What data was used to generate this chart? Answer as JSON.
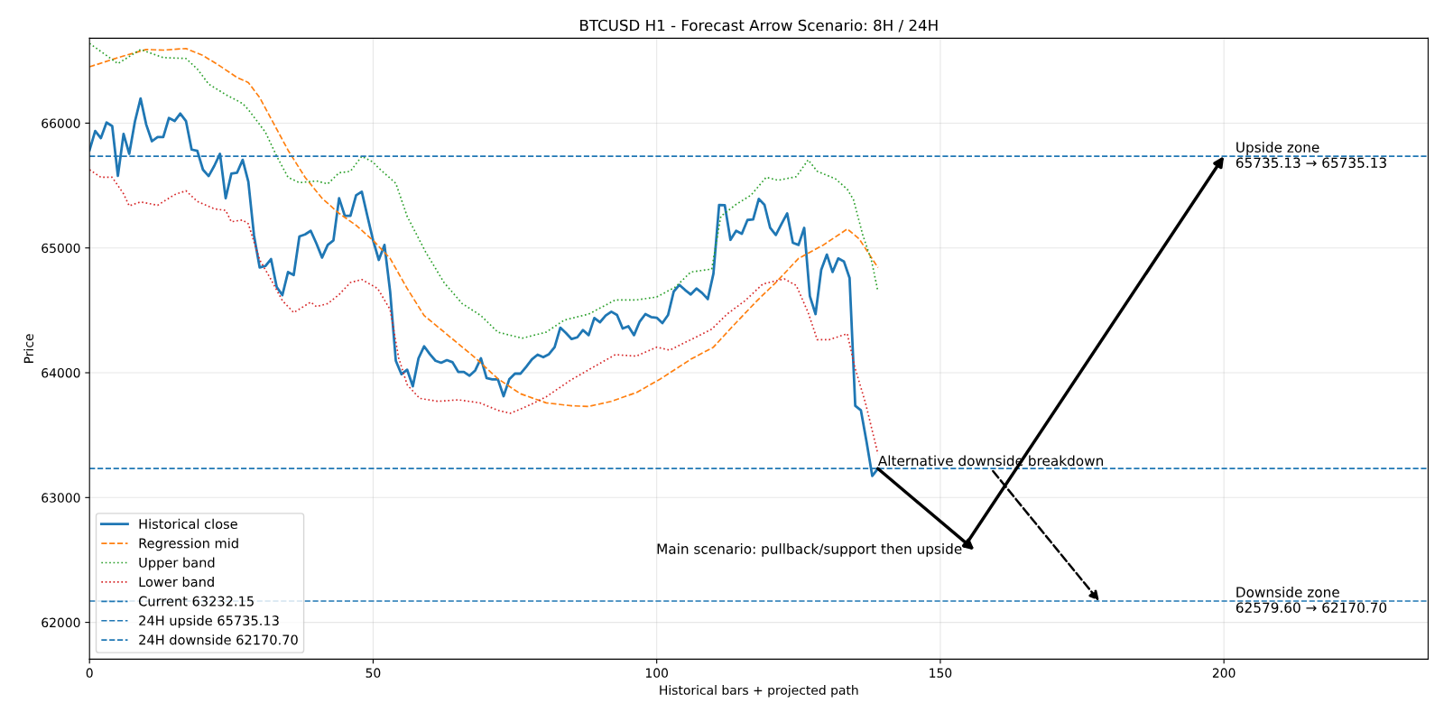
{
  "chart_data": {
    "type": "line",
    "title": "BTCUSD H1 - Forecast Arrow Scenario: 8H / 24H",
    "xlabel": "Historical bars + projected path",
    "ylabel": "Price",
    "xlim": [
      0,
      236
    ],
    "ylim": [
      61705,
      66680
    ],
    "xticks": [
      0,
      50,
      100,
      150,
      200
    ],
    "yticks": [
      62000,
      63000,
      64000,
      65000,
      66000
    ],
    "grid": true,
    "legend": "bottom left",
    "series": [
      {
        "name": "Historical close",
        "color": "#1f77b4",
        "line_style": "solid",
        "x": [
          0,
          1,
          2,
          3,
          4,
          5,
          6,
          7,
          8,
          9,
          10,
          11,
          12,
          13,
          14,
          15,
          16,
          17,
          18,
          19,
          20,
          21,
          22,
          23,
          24,
          25,
          26,
          27,
          28,
          29,
          30,
          31,
          32,
          33,
          34,
          35,
          36,
          37,
          38,
          39,
          40,
          41,
          42,
          43,
          44,
          45,
          46,
          47,
          48,
          49,
          50,
          51,
          52,
          53,
          54,
          55,
          56,
          57,
          58,
          59,
          60,
          61,
          62,
          63,
          64,
          65,
          66,
          67,
          68,
          69,
          70,
          71,
          72,
          73,
          74,
          75,
          76,
          77,
          78,
          79,
          80,
          81,
          82,
          83,
          84,
          85,
          86,
          87,
          88,
          89,
          90,
          91,
          92,
          93,
          94,
          95,
          96,
          97,
          98,
          99,
          100,
          101,
          102,
          103,
          104,
          105,
          106,
          107,
          108,
          109,
          110,
          111,
          112,
          113,
          114,
          115,
          116,
          117,
          118,
          119,
          120,
          121,
          122,
          123,
          124,
          125,
          126,
          127,
          128,
          129,
          130,
          131,
          132,
          133,
          134,
          135,
          136,
          137,
          138,
          139
        ],
        "values": [
          65783,
          65937,
          65880,
          66005,
          65976,
          65578,
          65913,
          65754,
          66012,
          66198,
          65988,
          65855,
          65889,
          65889,
          66041,
          66017,
          66077,
          66017,
          65788,
          65778,
          65627,
          65576,
          65658,
          65754,
          65398,
          65595,
          65602,
          65706,
          65530,
          65100,
          64843,
          64855,
          64911,
          64687,
          64622,
          64807,
          64783,
          65092,
          65108,
          65137,
          65036,
          64923,
          65024,
          65060,
          65398,
          65258,
          65258,
          65422,
          65451,
          65253,
          65060,
          64904,
          65024,
          64650,
          64096,
          63988,
          64024,
          63892,
          64116,
          64212,
          64149,
          64096,
          64080,
          64101,
          64084,
          64007,
          64007,
          63976,
          64019,
          64116,
          63957,
          63947,
          63947,
          63812,
          63947,
          63993,
          63993,
          64048,
          64108,
          64145,
          64125,
          64149,
          64205,
          64361,
          64318,
          64270,
          64284,
          64342,
          64301,
          64439,
          64405,
          64458,
          64489,
          64463,
          64354,
          64373,
          64301,
          64410,
          64470,
          64446,
          64441,
          64398,
          64463,
          64651,
          64704,
          64663,
          64627,
          64675,
          64639,
          64590,
          64795,
          65345,
          65342,
          65065,
          65137,
          65113,
          65224,
          65229,
          65393,
          65345,
          65161,
          65104,
          65193,
          65277,
          65041,
          65024,
          65161,
          64614,
          64470,
          64824,
          64947,
          64807,
          64916,
          64892,
          64759,
          63735,
          63699,
          63446,
          63173,
          63232
        ]
      },
      {
        "name": "Regression mid",
        "color": "#ff7f0e",
        "line_style": "dashed",
        "x": [
          0,
          5,
          10,
          13,
          17,
          20,
          23,
          26,
          28,
          30,
          32,
          35,
          38,
          41,
          44,
          47,
          50,
          53,
          56,
          59,
          63.5,
          68,
          72,
          76,
          80.5,
          85,
          88,
          92,
          96.5,
          100.7,
          106,
          110,
          113.4,
          117.7,
          121,
          125,
          129.4,
          133.6,
          135.7,
          139
        ],
        "values": [
          66451,
          66525,
          66590,
          66585,
          66598,
          66542,
          66458,
          66366,
          66325,
          66205,
          66036,
          65783,
          65566,
          65398,
          65277,
          65181,
          65060,
          64916,
          64675,
          64458,
          64289,
          64120,
          63952,
          63831,
          63759,
          63735,
          63730,
          63771,
          63843,
          63952,
          64108,
          64205,
          64373,
          64578,
          64723,
          64916,
          65024,
          65152,
          65072,
          64843
        ]
      },
      {
        "name": "Upper band",
        "color": "#2ca02c",
        "line_style": "dotted",
        "x": [
          0,
          5,
          9,
          13,
          17,
          19,
          21,
          24,
          27,
          28,
          31,
          33,
          35,
          37,
          40,
          42,
          44,
          46,
          48,
          50,
          51,
          54,
          56,
          59.3,
          62.5,
          65.7,
          69,
          72,
          76.3,
          80.5,
          83.7,
          88,
          92.7,
          96.4,
          100,
          103.3,
          106,
          109.7,
          111.3,
          114,
          116.6,
          119.3,
          121.4,
          124.6,
          126.7,
          128.3,
          131.5,
          133.6,
          134.7,
          136.3,
          137.9,
          139
        ],
        "values": [
          66639,
          66477,
          66590,
          66525,
          66518,
          66434,
          66313,
          66229,
          66157,
          66108,
          65928,
          65735,
          65566,
          65523,
          65537,
          65513,
          65602,
          65614,
          65735,
          65687,
          65639,
          65518,
          65253,
          64964,
          64723,
          64554,
          64458,
          64325,
          64277,
          64325,
          64422,
          64470,
          64583,
          64583,
          64607,
          64687,
          64807,
          64831,
          65253,
          65349,
          65422,
          65566,
          65542,
          65571,
          65706,
          65614,
          65554,
          65470,
          65386,
          65108,
          64892,
          64651
        ]
      },
      {
        "name": "Lower band",
        "color": "#d62728",
        "line_style": "dotted",
        "x": [
          0,
          2,
          4,
          6,
          7,
          9,
          12,
          15,
          17,
          19,
          22,
          24,
          25,
          27,
          28,
          30,
          32,
          34,
          36,
          39,
          40,
          42,
          44,
          46,
          48,
          50.8,
          53,
          54.5,
          56,
          58.2,
          61.4,
          65,
          68.8,
          72,
          74.2,
          77.3,
          80.5,
          84.8,
          88,
          92.7,
          96.4,
          100,
          102.3,
          106,
          109.7,
          112.4,
          115.6,
          118.7,
          122.5,
          124.6,
          126.7,
          128.3,
          130.4,
          133.6,
          134.9,
          136.8,
          139
        ],
        "values": [
          65627,
          65566,
          65566,
          65434,
          65337,
          65369,
          65342,
          65427,
          65458,
          65373,
          65313,
          65301,
          65210,
          65224,
          65193,
          64904,
          64747,
          64578,
          64482,
          64566,
          64530,
          64554,
          64627,
          64723,
          64747,
          64675,
          64506,
          64120,
          63904,
          63795,
          63771,
          63783,
          63759,
          63699,
          63675,
          63735,
          63807,
          63940,
          64024,
          64145,
          64133,
          64205,
          64181,
          64265,
          64349,
          64470,
          64578,
          64711,
          64752,
          64699,
          64482,
          64265,
          64265,
          64313,
          64048,
          63759,
          63349
        ]
      }
    ],
    "ref_lines": [
      {
        "axis": "y",
        "value": 63232.15,
        "label": "Current 63232.15",
        "color": "#1f77b4",
        "line_style": "dashed"
      },
      {
        "axis": "y",
        "value": 65735.13,
        "label": "24H upside 65735.13",
        "color": "#1f77b4",
        "line_style": "dashed"
      },
      {
        "axis": "y",
        "value": 62170.7,
        "label": "24H downside 62170.70",
        "color": "#1f77b4",
        "line_style": "dashed"
      }
    ],
    "annotations": [
      {
        "text": "Alternative downside breakdown",
        "x": 178,
        "y": 62170.7
      },
      {
        "text": "Main scenario: pullback/support then upside",
        "x": 200,
        "y": 65735.13
      },
      "Upside zone\n65735.13 → 65735.13",
      "Downside zone\n62579.60 → 62170.70"
    ]
  }
}
